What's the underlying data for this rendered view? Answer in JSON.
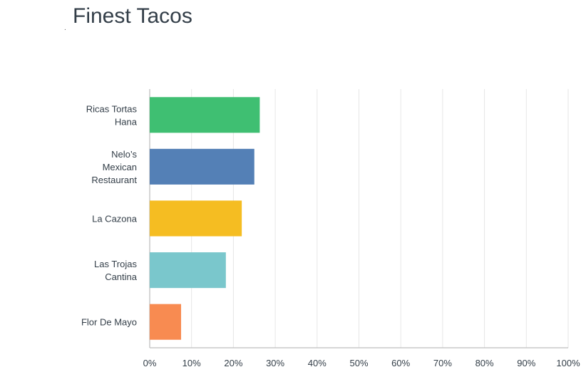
{
  "title_prefix": ".",
  "chart_data": {
    "type": "bar",
    "orientation": "horizontal",
    "title": "Finest Tacos",
    "categories": [
      [
        "Ricas Tortas",
        "Hana"
      ],
      [
        "Nelo’s",
        "Mexican",
        "Restaurant"
      ],
      [
        "La Cazona"
      ],
      [
        "Las Trojas",
        "Cantina"
      ],
      [
        "Flor De Mayo"
      ]
    ],
    "values": [
      26.3,
      25.0,
      22.0,
      18.2,
      7.5
    ],
    "colors": [
      "#3fbf72",
      "#5480b6",
      "#f5bd22",
      "#7ac7cc",
      "#f88b51"
    ],
    "xlim": [
      0,
      100
    ],
    "xticks": [
      "0%",
      "10%",
      "20%",
      "30%",
      "40%",
      "50%",
      "60%",
      "70%",
      "80%",
      "90%",
      "100%"
    ],
    "grid": true
  }
}
